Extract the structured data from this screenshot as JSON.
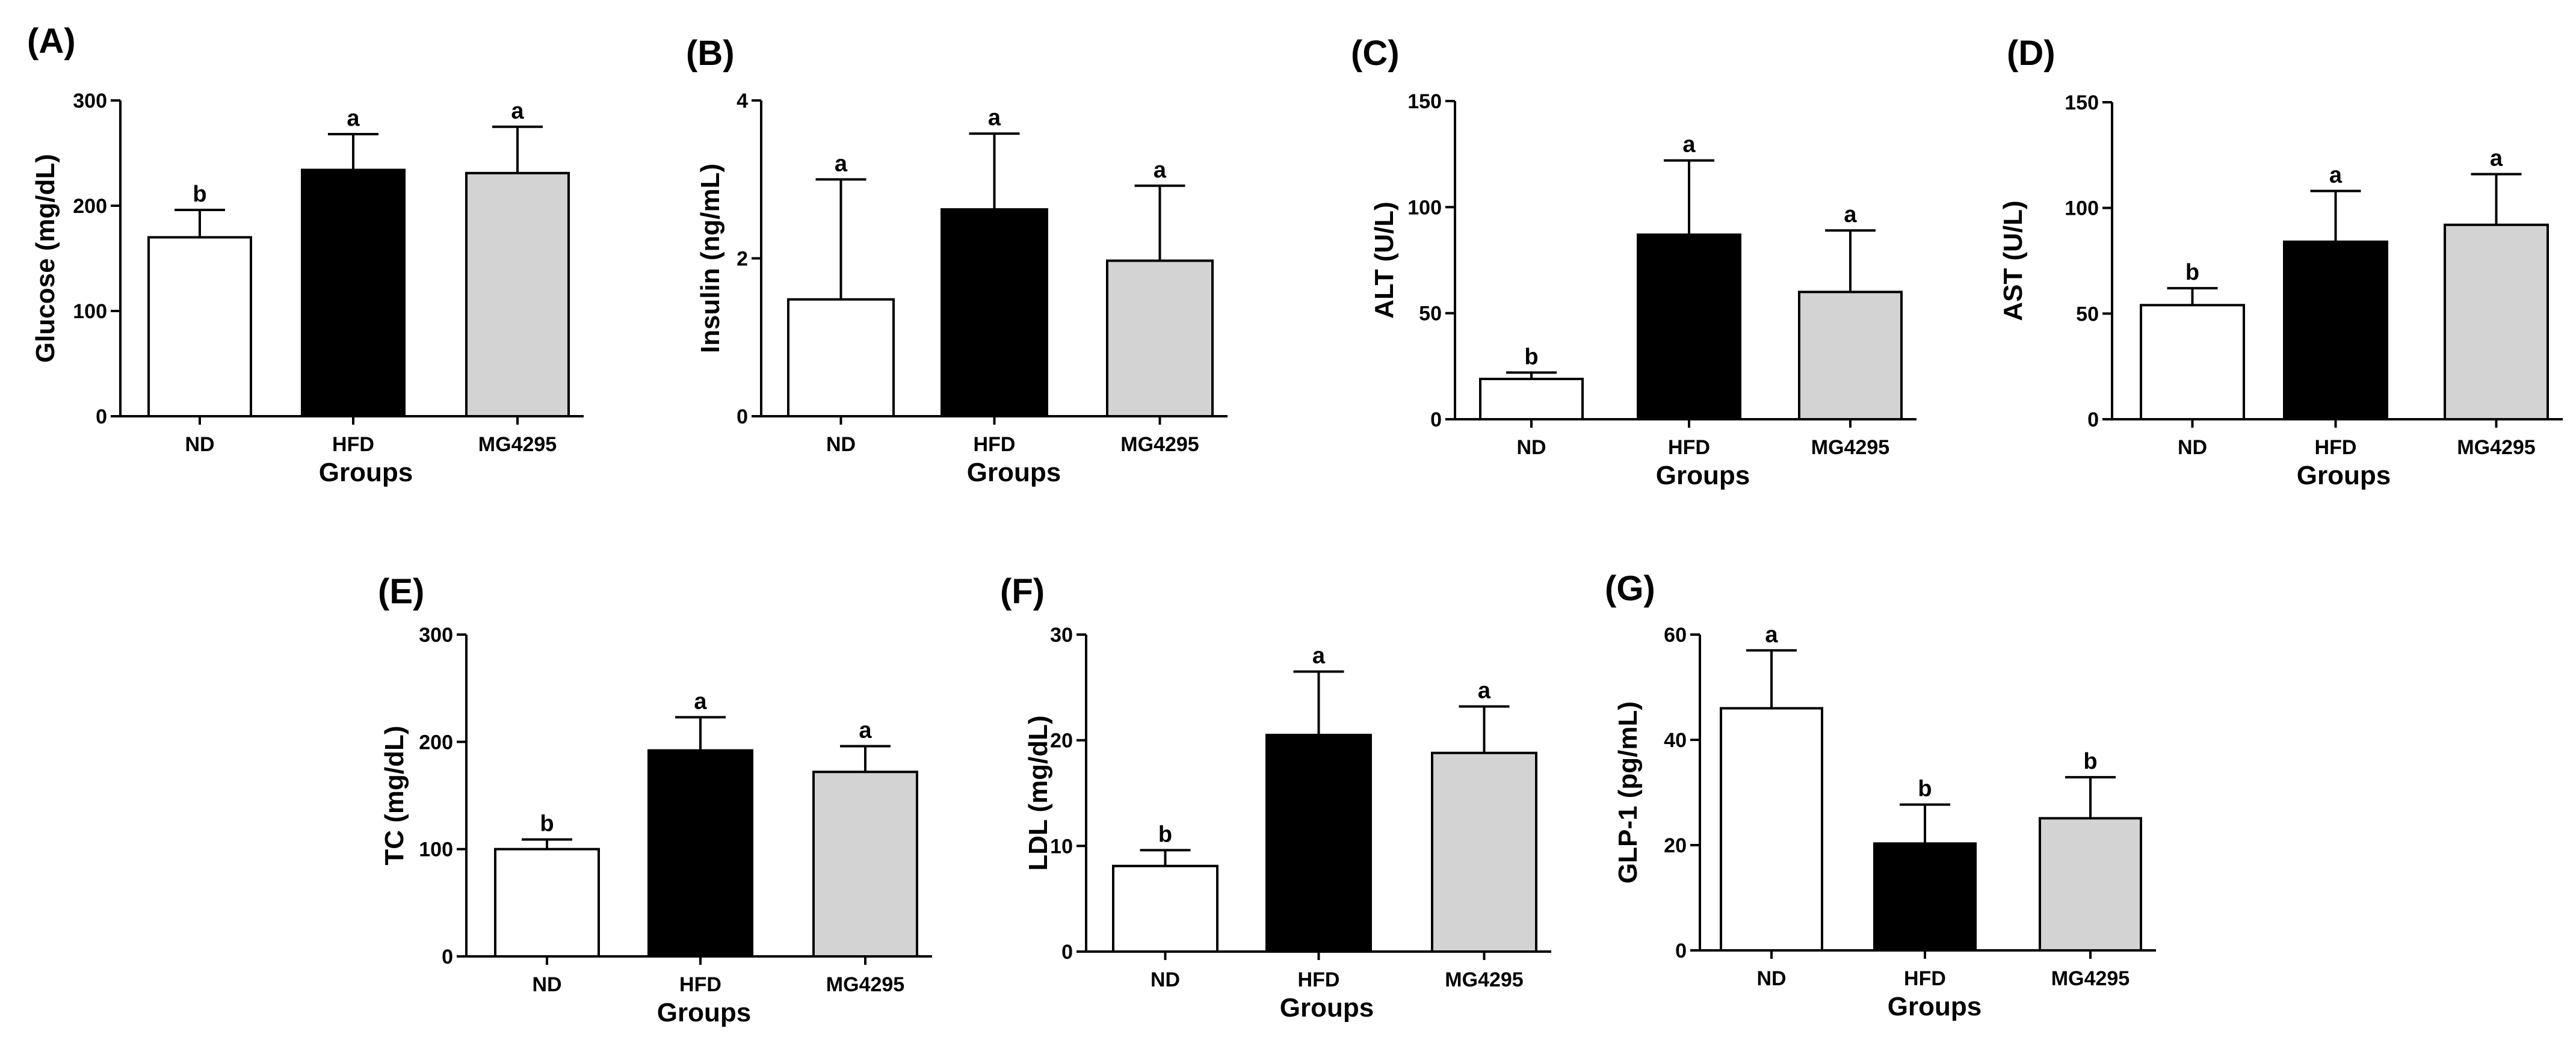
{
  "colors": {
    "ND": "#ffffff",
    "HFD": "#000000",
    "MG4295": "#d3d3d3",
    "axis": "#000000"
  },
  "chart_data": [
    {
      "type": "bar",
      "panel": "(A)",
      "ylabel": "Glucose (mg/dL)",
      "xlabel": "Groups",
      "categories": [
        "ND",
        "HFD",
        "MG4295"
      ],
      "ylim": [
        0,
        300
      ],
      "yticks": [
        "0",
        "100",
        "200",
        "300"
      ],
      "values": [
        170,
        234,
        231
      ],
      "errors": [
        26,
        34,
        44
      ],
      "letters": [
        "b",
        "a",
        "a"
      ]
    },
    {
      "type": "bar",
      "panel": "(B)",
      "ylabel": "Insulin (ng/mL)",
      "xlabel": "Groups",
      "categories": [
        "ND",
        "HFD",
        "MG4295"
      ],
      "ylim": [
        0,
        4
      ],
      "yticks": [
        "0",
        "2",
        "4"
      ],
      "values": [
        1.48,
        2.62,
        1.97
      ],
      "errors": [
        1.52,
        0.96,
        0.95
      ],
      "letters": [
        "a",
        "a",
        "a"
      ]
    },
    {
      "type": "bar",
      "panel": "(C)",
      "ylabel": "ALT (U/L)",
      "xlabel": "Groups",
      "categories": [
        "ND",
        "HFD",
        "MG4295"
      ],
      "ylim": [
        0,
        150
      ],
      "yticks": [
        "0",
        "50",
        "100",
        "150"
      ],
      "values": [
        19,
        87,
        60
      ],
      "errors": [
        3,
        35,
        29
      ],
      "letters": [
        "b",
        "a",
        "a"
      ]
    },
    {
      "type": "bar",
      "panel": "(D)",
      "ylabel": "AST (U/L)",
      "xlabel": "Groups",
      "categories": [
        "ND",
        "HFD",
        "MG4295"
      ],
      "ylim": [
        0,
        150
      ],
      "yticks": [
        "0",
        "50",
        "100",
        "150"
      ],
      "values": [
        54,
        84,
        92
      ],
      "errors": [
        8,
        24,
        24
      ],
      "letters": [
        "b",
        "a",
        "a"
      ]
    },
    {
      "type": "bar",
      "panel": "(E)",
      "ylabel": "TC (mg/dL)",
      "xlabel": "Groups",
      "categories": [
        "ND",
        "HFD",
        "MG4295"
      ],
      "ylim": [
        0,
        300
      ],
      "yticks": [
        "0",
        "100",
        "200",
        "300"
      ],
      "values": [
        100,
        192,
        172
      ],
      "errors": [
        9,
        31,
        24
      ],
      "letters": [
        "b",
        "a",
        "a"
      ]
    },
    {
      "type": "bar",
      "panel": "(F)",
      "ylabel": "LDL (mg/dL)",
      "xlabel": "Groups",
      "categories": [
        "ND",
        "HFD",
        "MG4295"
      ],
      "ylim": [
        0,
        30
      ],
      "yticks": [
        "0",
        "10",
        "20",
        "30"
      ],
      "values": [
        8.1,
        20.5,
        18.8
      ],
      "errors": [
        1.5,
        6.0,
        4.4
      ],
      "letters": [
        "b",
        "a",
        "a"
      ]
    },
    {
      "type": "bar",
      "panel": "(G)",
      "ylabel": "GLP-1 (pg/mL)",
      "xlabel": "Groups",
      "categories": [
        "ND",
        "HFD",
        "MG4295"
      ],
      "ylim": [
        0,
        60
      ],
      "yticks": [
        "0",
        "20",
        "40",
        "60"
      ],
      "values": [
        46,
        20.3,
        25.1
      ],
      "errors": [
        11,
        7.4,
        7.8
      ],
      "letters": [
        "a",
        "b",
        "b"
      ]
    }
  ]
}
